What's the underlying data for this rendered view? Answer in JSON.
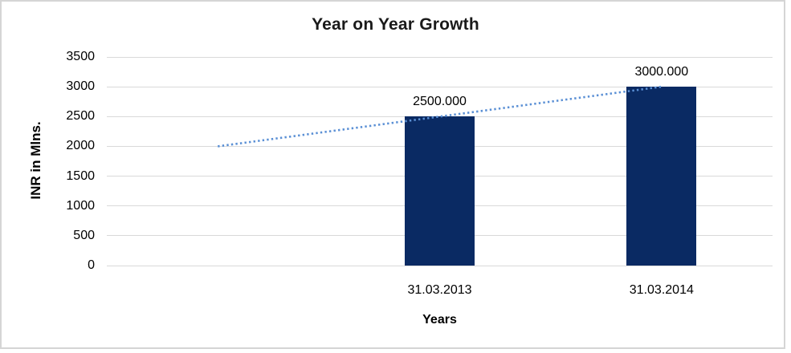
{
  "chart_data": {
    "type": "bar",
    "title": "Year on Year Growth",
    "xlabel": "Years",
    "ylabel": "INR in Mlns.",
    "categories": [
      "",
      "31.03.2013",
      "31.03.2014"
    ],
    "series": [
      {
        "name": "INR in Mlns.",
        "type": "bar",
        "color": "#0a2a63",
        "values": [
          null,
          2500,
          3000
        ],
        "data_labels": [
          "",
          "2500.000",
          "3000.000"
        ]
      },
      {
        "name": "trend",
        "type": "line",
        "style": "dotted",
        "color": "#5b90d5",
        "values": [
          2000,
          2500,
          3000
        ]
      }
    ],
    "ylim": [
      0,
      3500
    ],
    "yticks": [
      {
        "value": 3500,
        "label": "3500"
      },
      {
        "value": 3000,
        "label": "3000"
      },
      {
        "value": 2500,
        "label": "2500"
      },
      {
        "value": 2000,
        "label": "2000"
      },
      {
        "value": 1500,
        "label": "1500"
      },
      {
        "value": 1000,
        "label": "1000"
      },
      {
        "value": 500,
        "label": "500"
      },
      {
        "value": 0,
        "label": "0"
      }
    ],
    "grid": true,
    "gridline_color": "#d9d9d9",
    "legend": "none"
  }
}
